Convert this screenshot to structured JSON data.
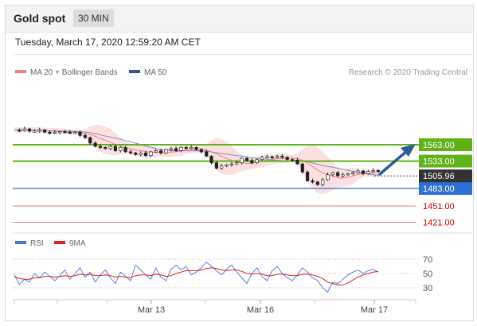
{
  "header": {
    "title": "Gold spot",
    "interval": "30 MIN"
  },
  "timestamp": "Tuesday, March 17, 2020 12:59:20 AM CET",
  "legend": {
    "ma20_label": "MA 20 + Bollinger Bands",
    "ma50_label": "MA 50",
    "credit": "Research © 2020 Trading Central"
  },
  "rsi_legend": {
    "rsi_label": "RSI",
    "ma_label": "9MA"
  },
  "colors": {
    "resistance": "#5fb319",
    "support": "#2e6fd6",
    "current": "#333333",
    "lower": "#d00000",
    "band": "#f9c7c7",
    "ma20": "#f08080",
    "ma50": "#7a8fc9",
    "rsi": "#4a74e0",
    "rsi_ma": "#e02020",
    "arrow": "#2d5b9a"
  },
  "chart_data": [
    {
      "type": "candlestick",
      "title": "Gold spot",
      "x_ticks": [
        "Mar 13",
        "Mar 16",
        "Mar 17"
      ],
      "ylim": [
        1410,
        1610
      ],
      "ohlc_close_path": [
        1590,
        1589,
        1592,
        1588,
        1588,
        1590,
        1586,
        1584,
        1586,
        1587,
        1586,
        1585,
        1586,
        1580,
        1576,
        1566,
        1560,
        1558,
        1556,
        1560,
        1552,
        1558,
        1550,
        1548,
        1545,
        1548,
        1543,
        1550,
        1552,
        1548,
        1554,
        1556,
        1552,
        1558,
        1557,
        1558,
        1554,
        1550,
        1542,
        1530,
        1520,
        1524,
        1526,
        1528,
        1530,
        1538,
        1534,
        1530,
        1536,
        1540,
        1541,
        1540,
        1542,
        1540,
        1536,
        1535,
        1528,
        1513,
        1497,
        1495,
        1490,
        1499,
        1508,
        1512,
        1506,
        1508,
        1510,
        1512,
        1515,
        1510,
        1514,
        1516,
        1514
      ],
      "current_price": 1505.96,
      "levels": [
        {
          "label": "1563.00",
          "value": 1563.0,
          "kind": "resistance"
        },
        {
          "label": "1533.00",
          "value": 1533.0,
          "kind": "resistance"
        },
        {
          "label": "1483.00",
          "value": 1483.0,
          "kind": "support"
        },
        {
          "label": "1451.00",
          "value": 1451.0,
          "kind": "lower"
        },
        {
          "label": "1421.00",
          "value": 1421.0,
          "kind": "lower"
        }
      ],
      "current_label": "1505.96",
      "series": [
        {
          "name": "MA 20 + Bollinger Bands"
        },
        {
          "name": "MA 50"
        }
      ]
    },
    {
      "type": "line",
      "legend": [
        "RSI",
        "9MA"
      ],
      "ylim": [
        10,
        80
      ],
      "y_ticks": [
        "70",
        "50",
        "30"
      ],
      "rsi": [
        48,
        35,
        42,
        38,
        50,
        44,
        52,
        46,
        40,
        47,
        55,
        42,
        50,
        58,
        45,
        52,
        38,
        48,
        55,
        44,
        36,
        52,
        46,
        40,
        62,
        55,
        48,
        42,
        58,
        45,
        40,
        56,
        62,
        55,
        60,
        48,
        52,
        58,
        66,
        60,
        54,
        48,
        56,
        62,
        52,
        44,
        36,
        50,
        58,
        46,
        40,
        54,
        60,
        50,
        44,
        40,
        48,
        58,
        52,
        44,
        40,
        30,
        24,
        38,
        36,
        42,
        48,
        52,
        55,
        50,
        54,
        56,
        52
      ],
      "rsi_ma": [
        46,
        43,
        42,
        42,
        44,
        44,
        46,
        46,
        45,
        46,
        47,
        46,
        47,
        49,
        48,
        49,
        47,
        47,
        48,
        47,
        45,
        46,
        45,
        44,
        47,
        48,
        48,
        47,
        49,
        48,
        46,
        47,
        50,
        52,
        54,
        54,
        54,
        55,
        57,
        58,
        57,
        55,
        54,
        55,
        55,
        53,
        50,
        49,
        50,
        49,
        47,
        47,
        49,
        49,
        48,
        47,
        47,
        49,
        49,
        48,
        46,
        43,
        38,
        36,
        34,
        34,
        37,
        41,
        45,
        48,
        50,
        52,
        53
      ]
    }
  ]
}
